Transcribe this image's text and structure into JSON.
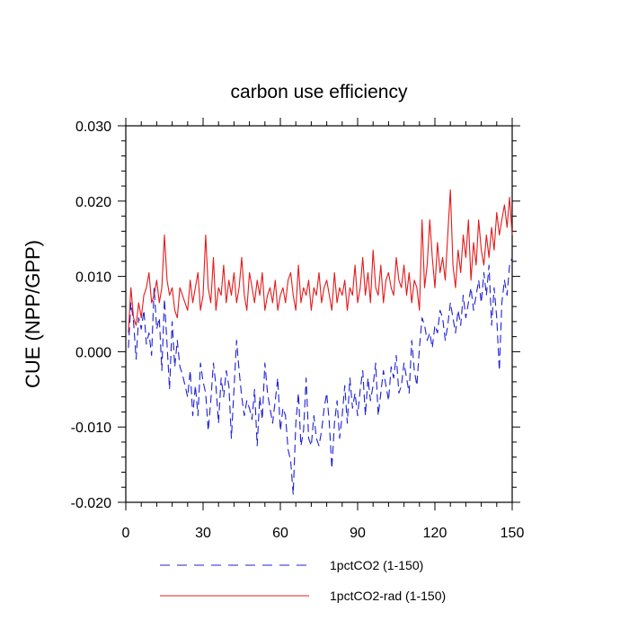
{
  "chart_data": {
    "type": "line",
    "title": "carbon use efficiency",
    "xlabel": "",
    "ylabel": "CUE  (NPP/GPP)",
    "xlim": [
      0,
      150
    ],
    "ylim": [
      -0.02,
      0.03
    ],
    "x_ticks": [
      0,
      30,
      60,
      90,
      120,
      150
    ],
    "x_tick_labels": [
      "0",
      "30",
      "60",
      "90",
      "120",
      "150"
    ],
    "y_ticks": [
      -0.02,
      -0.01,
      0.0,
      0.01,
      0.02,
      0.03
    ],
    "y_tick_labels": [
      "-0.020",
      "-0.010",
      "0.000",
      "0.010",
      "0.020",
      "0.030"
    ],
    "grid": false,
    "legend_position": "bottom",
    "x": [
      1,
      2,
      3,
      4,
      5,
      6,
      7,
      8,
      9,
      10,
      11,
      12,
      13,
      14,
      15,
      16,
      17,
      18,
      19,
      20,
      21,
      22,
      23,
      24,
      25,
      26,
      27,
      28,
      29,
      30,
      31,
      32,
      33,
      34,
      35,
      36,
      37,
      38,
      39,
      40,
      41,
      42,
      43,
      44,
      45,
      46,
      47,
      48,
      49,
      50,
      51,
      52,
      53,
      54,
      55,
      56,
      57,
      58,
      59,
      60,
      61,
      62,
      63,
      64,
      65,
      66,
      67,
      68,
      69,
      70,
      71,
      72,
      73,
      74,
      75,
      76,
      77,
      78,
      79,
      80,
      81,
      82,
      83,
      84,
      85,
      86,
      87,
      88,
      89,
      90,
      91,
      92,
      93,
      94,
      95,
      96,
      97,
      98,
      99,
      100,
      101,
      102,
      103,
      104,
      105,
      106,
      107,
      108,
      109,
      110,
      111,
      112,
      113,
      114,
      115,
      116,
      117,
      118,
      119,
      120,
      121,
      122,
      123,
      124,
      125,
      126,
      127,
      128,
      129,
      130,
      131,
      132,
      133,
      134,
      135,
      136,
      137,
      138,
      139,
      140,
      141,
      142,
      143,
      144,
      145,
      146,
      147,
      148,
      149,
      150
    ],
    "series": [
      {
        "name": "1pctCO2 (1-150)",
        "color": "#1f1fd6",
        "style": "dashed",
        "values": [
          0.0005,
          0.0065,
          0.004,
          -0.001,
          0.0045,
          0.003,
          0.0055,
          0.001,
          0.0025,
          -0.0005,
          0.0085,
          0.003,
          0.0045,
          -0.0025,
          0.007,
          0.001,
          -0.005,
          0.004,
          -0.002,
          0.0015,
          -0.002,
          -0.003,
          -0.0045,
          -0.006,
          -0.0025,
          -0.0085,
          -0.0045,
          -0.0085,
          -0.0015,
          -0.004,
          -0.0055,
          -0.0105,
          -0.0065,
          -0.0015,
          -0.0045,
          -0.0095,
          -0.0035,
          -0.006,
          -0.0025,
          -0.0045,
          -0.0115,
          -0.005,
          0.0015,
          -0.0025,
          -0.006,
          -0.0085,
          -0.0065,
          -0.0075,
          -0.009,
          -0.005,
          -0.0125,
          -0.006,
          -0.009,
          -0.0015,
          -0.0055,
          -0.0075,
          -0.0095,
          -0.0065,
          -0.0035,
          -0.0105,
          -0.0075,
          -0.0085,
          -0.013,
          -0.0145,
          -0.019,
          -0.0095,
          -0.0055,
          -0.0125,
          -0.0105,
          -0.0035,
          -0.0115,
          -0.0125,
          -0.0085,
          -0.0115,
          -0.0125,
          -0.0105,
          -0.0075,
          -0.0055,
          -0.0095,
          -0.0155,
          -0.0095,
          -0.0065,
          -0.0115,
          -0.0085,
          -0.0045,
          -0.0095,
          -0.0035,
          -0.0075,
          -0.0055,
          -0.0085,
          -0.005,
          -0.0025,
          -0.0085,
          -0.0035,
          -0.0065,
          -0.0045,
          -0.0015,
          -0.0085,
          -0.0055,
          -0.0025,
          -0.0045,
          -0.0065,
          -0.002,
          -0.0035,
          -0.0005,
          -0.0055,
          -0.0045,
          -0.0015,
          -0.0035,
          -0.0055,
          0.0015,
          -0.0025,
          -0.0045,
          0.0005,
          0.0045,
          0.0035,
          0.0015,
          0.0025,
          0.0005,
          0.0035,
          0.0025,
          0.0055,
          0.0045,
          0.0015,
          0.0035,
          0.0065,
          0.0045,
          0.0025,
          0.0055,
          0.0035,
          0.0075,
          0.0045,
          0.0065,
          0.0085,
          0.0055,
          0.0075,
          0.0095,
          0.0065,
          0.0105,
          0.0075,
          0.0115,
          0.0035,
          0.0085,
          0.0045,
          -0.0025,
          0.0065,
          0.0095,
          0.0075,
          0.0115,
          0.0125
        ]
      },
      {
        "name": "1pctCO2-rad (1-150)",
        "color": "#e41a1a",
        "style": "solid",
        "values": [
          0.0025,
          0.0085,
          0.0045,
          0.0035,
          0.0065,
          0.0045,
          0.0075,
          0.0085,
          0.0105,
          0.0065,
          0.0075,
          0.0095,
          0.0065,
          0.0085,
          0.0155,
          0.0095,
          0.0075,
          0.0085,
          0.0055,
          0.0045,
          0.0085,
          0.0075,
          0.0065,
          0.0055,
          0.0095,
          0.0065,
          0.0085,
          0.0105,
          0.0055,
          0.0075,
          0.0155,
          0.0085,
          0.0065,
          0.0125,
          0.0055,
          0.0085,
          0.0075,
          0.0115,
          0.0065,
          0.0095,
          0.0075,
          0.0105,
          0.0065,
          0.0085,
          0.0125,
          0.0075,
          0.0055,
          0.0105,
          0.0085,
          0.0065,
          0.0095,
          0.0075,
          0.0105,
          0.0055,
          0.0075,
          0.0085,
          0.0065,
          0.0095,
          0.0055,
          0.0075,
          0.0085,
          0.0065,
          0.0095,
          0.0105,
          0.0075,
          0.0055,
          0.0115,
          0.0065,
          0.0085,
          0.0075,
          0.0095,
          0.0055,
          0.0085,
          0.0075,
          0.0105,
          0.0065,
          0.0085,
          0.0095,
          0.0075,
          0.0055,
          0.0105,
          0.0065,
          0.0085,
          0.0075,
          0.0095,
          0.0055,
          0.0085,
          0.0075,
          0.0115,
          0.0065,
          0.0085,
          0.0125,
          0.0075,
          0.0105,
          0.0065,
          0.0135,
          0.0085,
          0.0075,
          0.0115,
          0.0065,
          0.0095,
          0.0105,
          0.0085,
          0.0075,
          0.0125,
          0.0095,
          0.0085,
          0.0115,
          0.0075,
          0.0105,
          0.0065,
          0.0095,
          0.0085,
          0.0055,
          0.0175,
          0.0085,
          0.0115,
          0.0175,
          0.0125,
          0.0085,
          0.0145,
          0.0105,
          0.0125,
          0.0095,
          0.0155,
          0.0215,
          0.0115,
          0.0085,
          0.0135,
          0.0105,
          0.0155,
          0.0125,
          0.0175,
          0.0095,
          0.0145,
          0.0115,
          0.0175,
          0.0135,
          0.0115,
          0.0155,
          0.0125,
          0.0165,
          0.0135,
          0.0185,
          0.0155,
          0.0175,
          0.0195,
          0.0165,
          0.0205,
          0.0155
        ]
      }
    ]
  }
}
